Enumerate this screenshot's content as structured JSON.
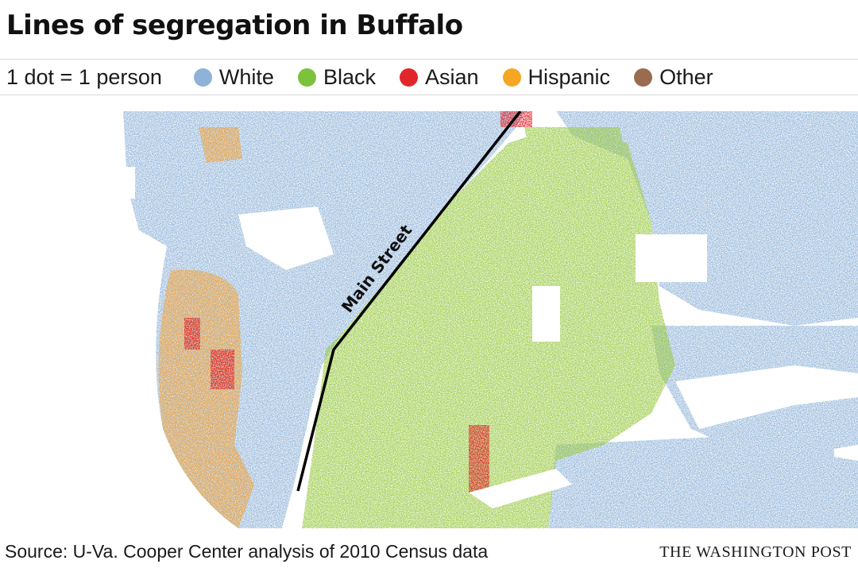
{
  "title": "Lines of segregation in Buffalo",
  "legend": {
    "scale": "1 dot = 1 person",
    "items": [
      {
        "label": "White",
        "color": "#8fb2d8"
      },
      {
        "label": "Black",
        "color": "#7cc23c"
      },
      {
        "label": "Asian",
        "color": "#e0262b"
      },
      {
        "label": "Hispanic",
        "color": "#f5a623"
      },
      {
        "label": "Other",
        "color": "#9a6b4f"
      }
    ]
  },
  "map": {
    "street_label": "Main Street",
    "colors": {
      "white": "#8fb2d8",
      "black": "#9ccb4a",
      "asian": "#e0262b",
      "hispanic": "#f2a33a",
      "other": "#9a6b4f"
    }
  },
  "footer": {
    "source": "Source: U-Va. Cooper Center analysis of 2010 Census data",
    "credit": "THE WASHINGTON POST"
  }
}
